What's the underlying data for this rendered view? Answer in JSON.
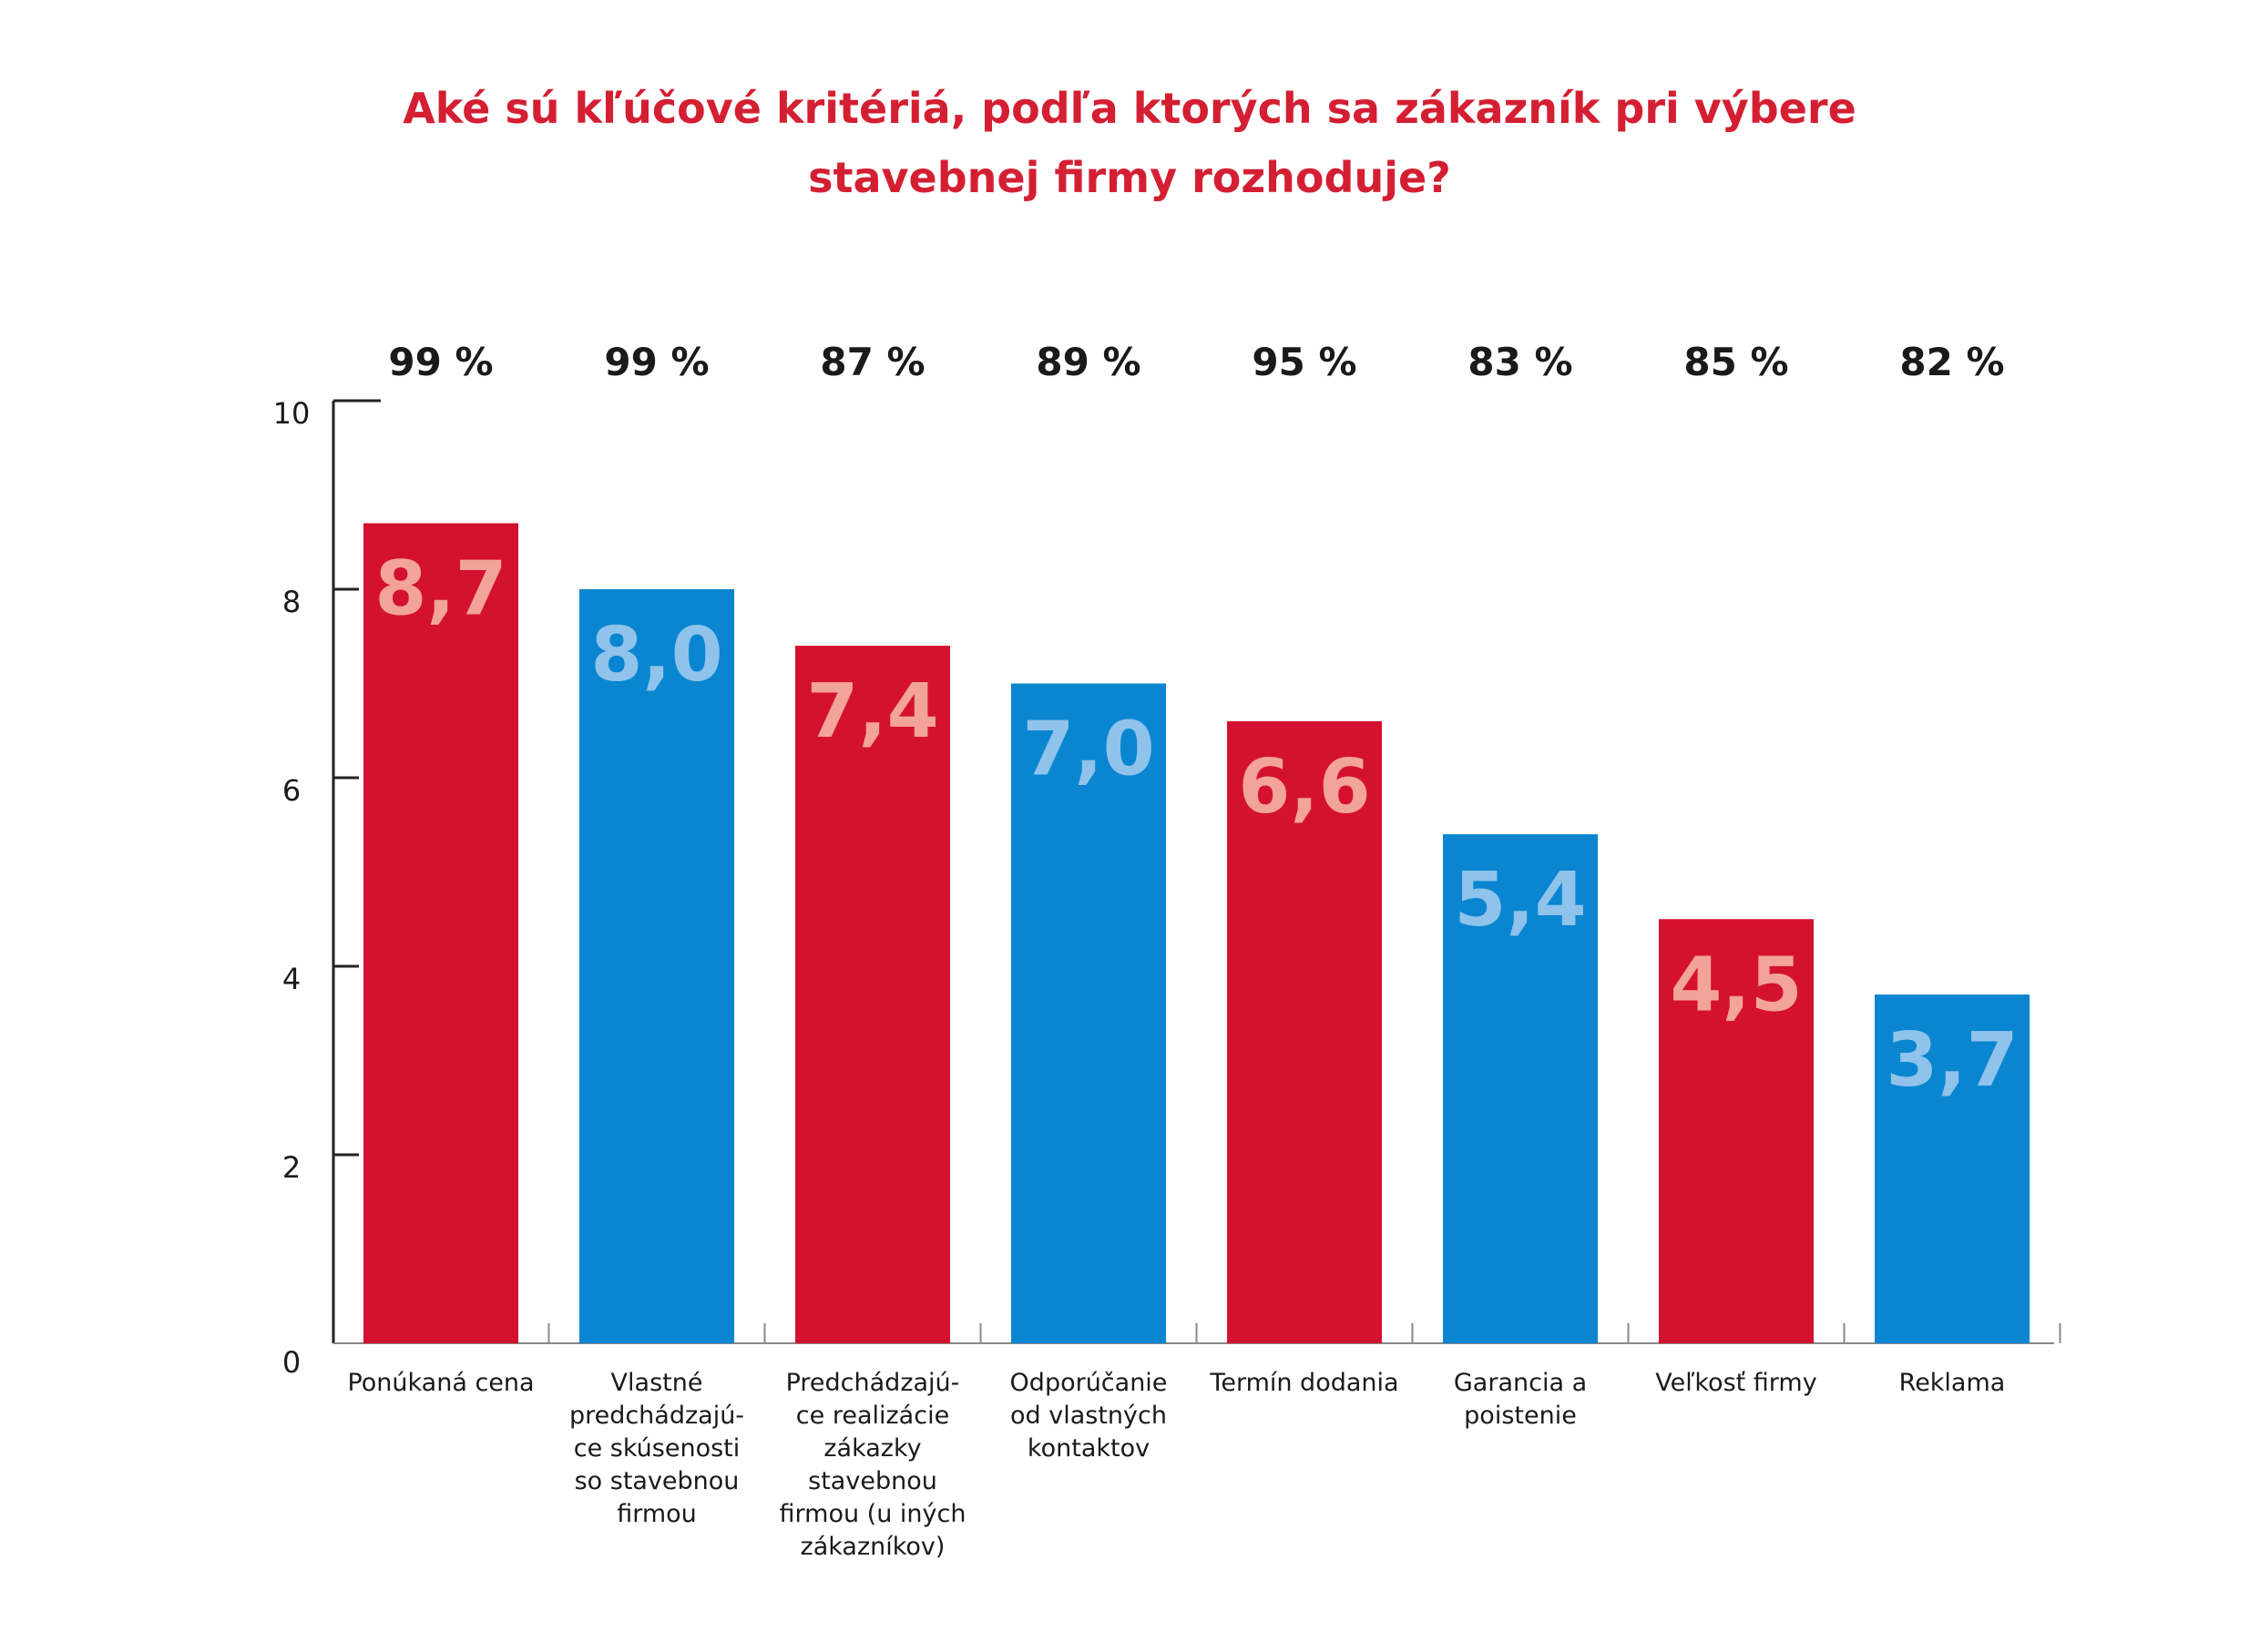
{
  "chart_data": {
    "type": "bar",
    "title_lines": [
      "Aké sú kľúčové kritériá, podľa ktorých sa zákazník pri výbere",
      "stavebnej firmy rozhoduje?"
    ],
    "categories": [
      [
        "Ponúkaná cena"
      ],
      [
        "Vlastné",
        "predchádzajú-",
        "ce skúsenosti",
        "so stavebnou",
        "firmou"
      ],
      [
        "Predchádzajú-",
        "ce realizácie",
        "zákazky",
        "stavebnou",
        "firmou (u iných",
        "zákazníkov)"
      ],
      [
        "Odporúčanie",
        "od vlastných",
        "kontaktov"
      ],
      [
        "Termín dodania"
      ],
      [
        "Garancia a",
        "poistenie"
      ],
      [
        "Veľkosť firmy"
      ],
      [
        "Reklama"
      ]
    ],
    "values": [
      8.7,
      8.0,
      7.4,
      7.0,
      6.6,
      5.4,
      4.5,
      3.7
    ],
    "value_labels": [
      "8,7",
      "8,0",
      "7,4",
      "7,0",
      "6,6",
      "5,4",
      "4,5",
      "3,7"
    ],
    "percent_labels": [
      "99 %",
      "99 %",
      "87 %",
      "89 %",
      "95 %",
      "83 %",
      "85 %",
      "82 %"
    ],
    "ylim": [
      0,
      10
    ],
    "yticks": [
      0,
      2,
      4,
      6,
      8,
      10
    ],
    "grid": false,
    "legend": "none",
    "colors": {
      "red_bar": "#d4122f",
      "blue_bar": "#0a86d0",
      "red_label": "#f2a39b",
      "blue_label": "#8fc3ec",
      "title": "#d41f33",
      "axis": "#222222"
    }
  }
}
